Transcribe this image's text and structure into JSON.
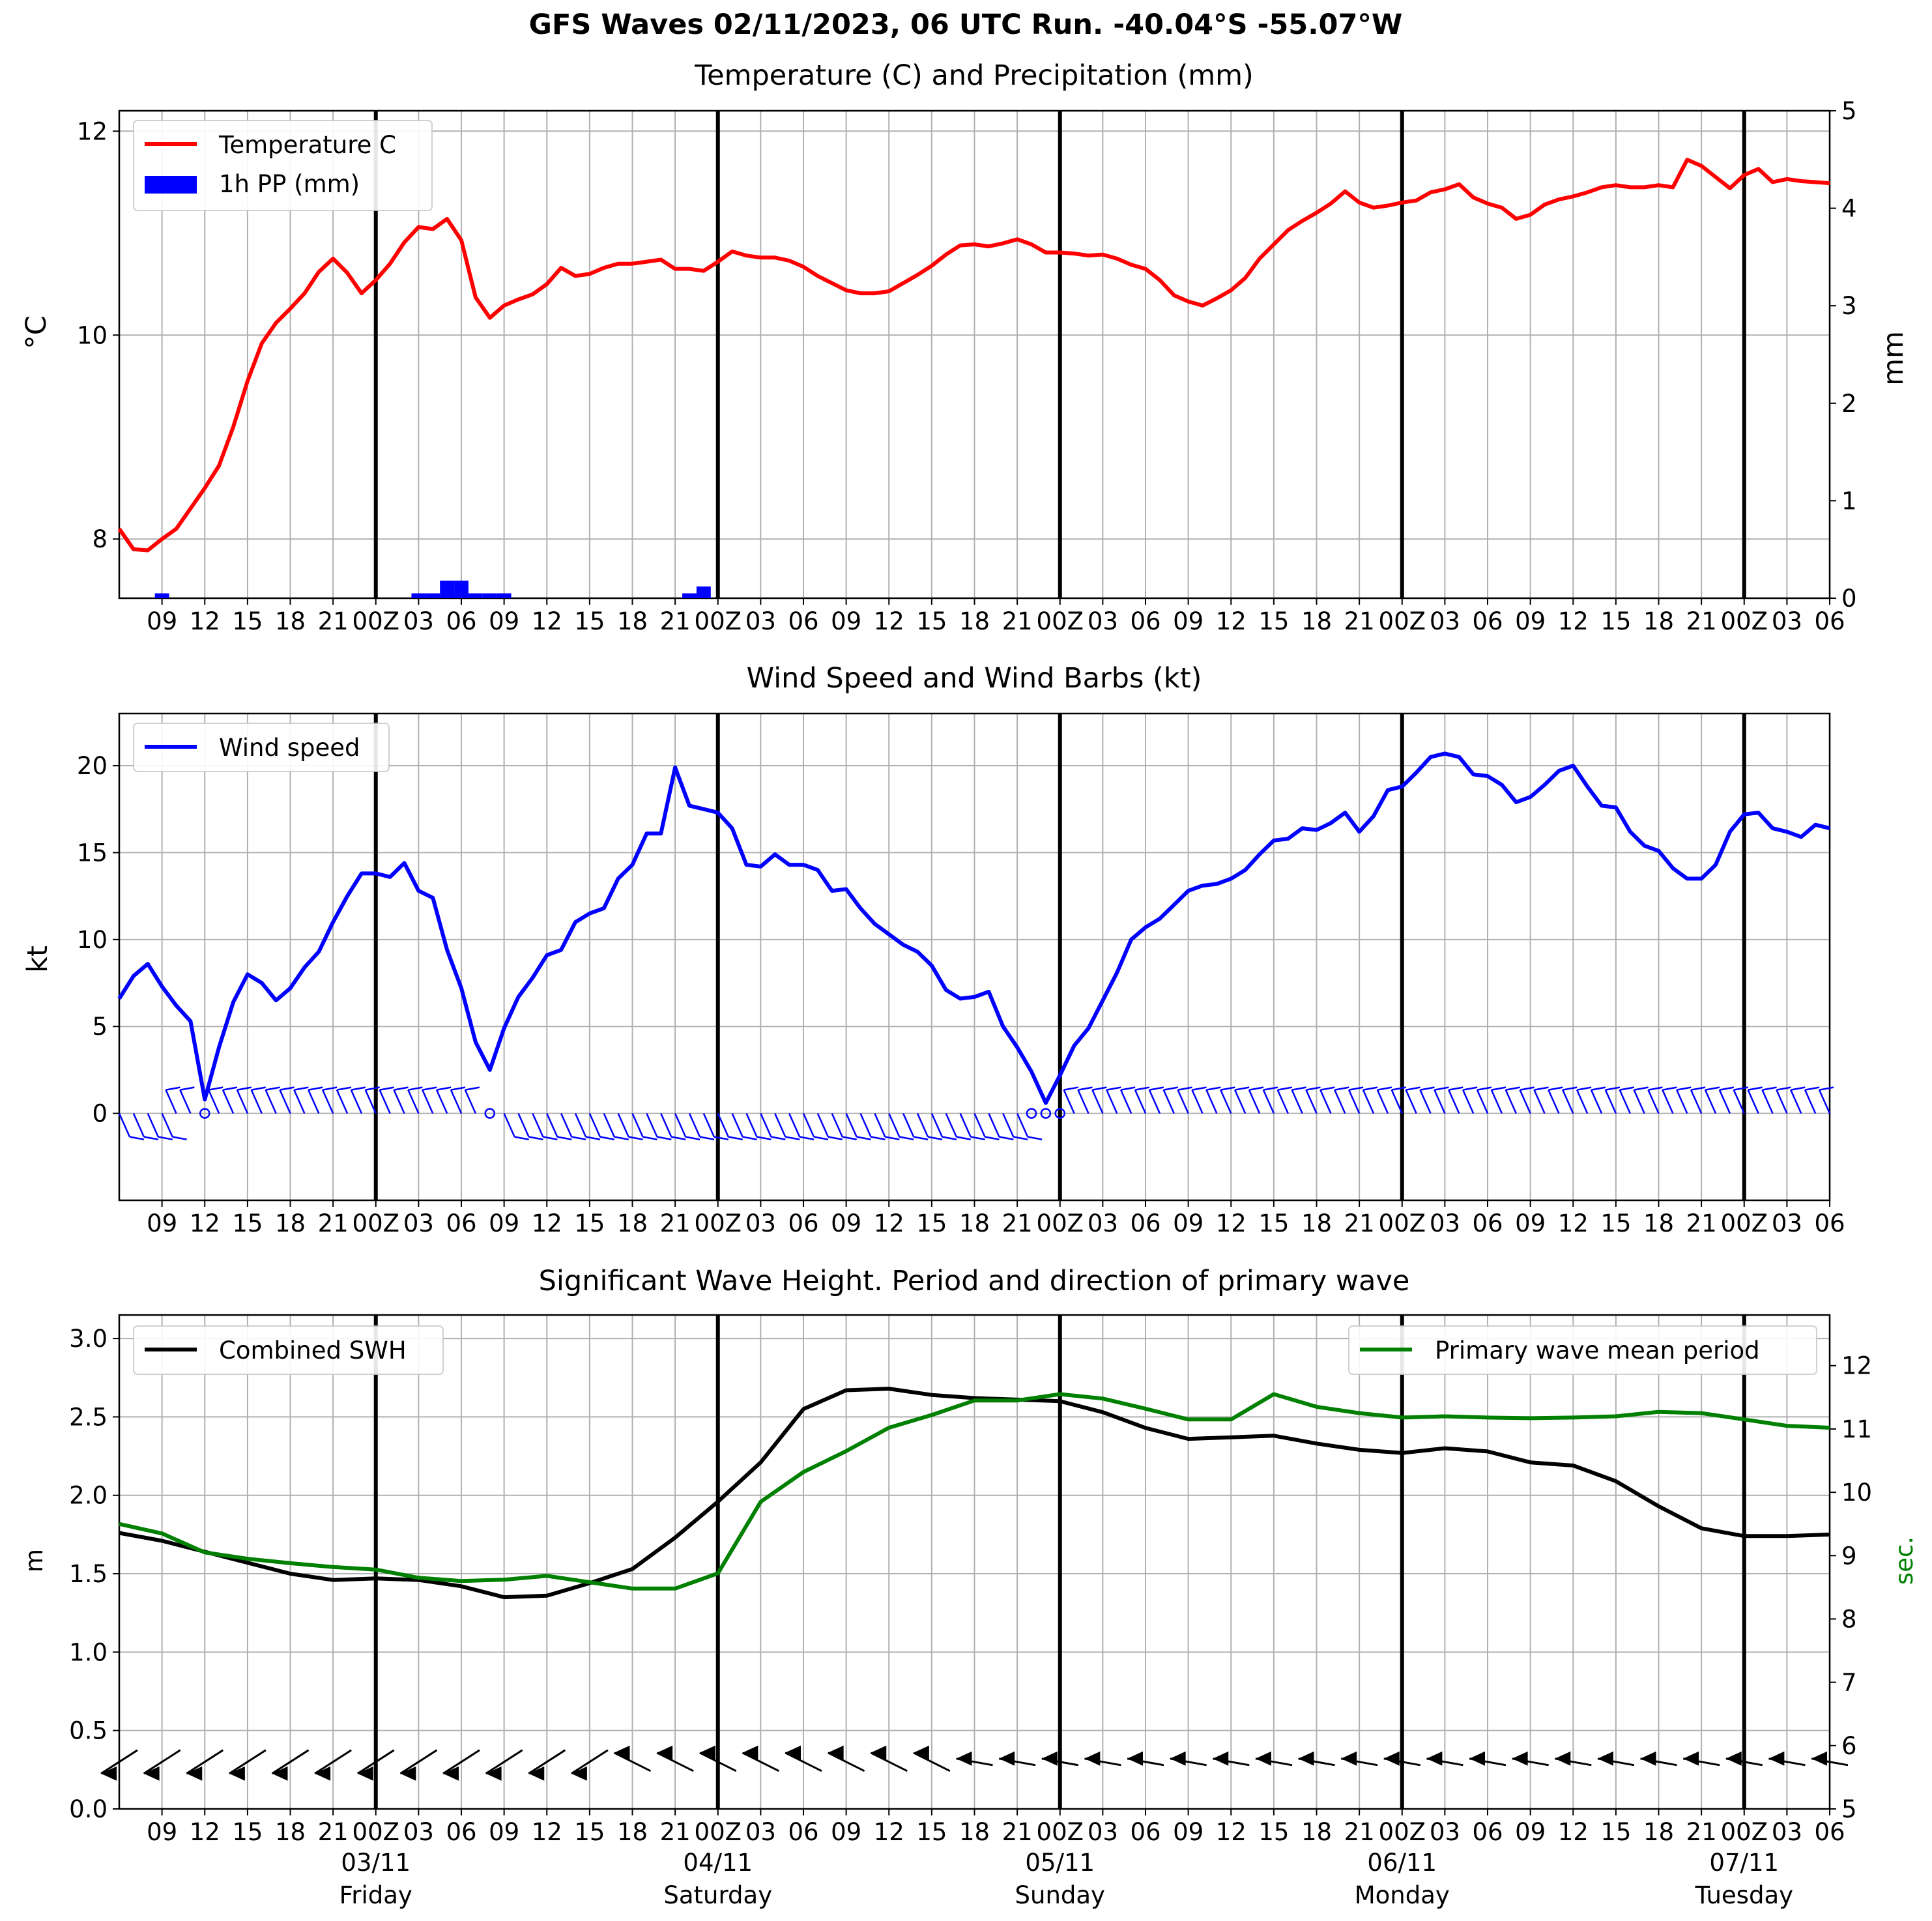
{
  "suptitle": "GFS Waves 02/11/2023, 06 UTC Run. -40.04°S -55.07°W",
  "colors": {
    "temperature": "#ff0000",
    "precipitation": "#0000ff",
    "wind": "#0000ff",
    "swh": "#000000",
    "period": "#008000",
    "grid": "#b0b0b0",
    "day_line": "#000000"
  },
  "x_axis": {
    "tick_labels": [
      "09",
      "12",
      "15",
      "18",
      "21",
      "00Z",
      "03",
      "06",
      "09",
      "12",
      "15",
      "18",
      "21",
      "00Z",
      "03",
      "06",
      "09",
      "12",
      "15",
      "18",
      "21",
      "00Z",
      "03",
      "06",
      "09",
      "12",
      "15",
      "18",
      "21",
      "00Z",
      "03",
      "06",
      "09",
      "12",
      "15",
      "18",
      "21",
      "00Z",
      "03",
      "06"
    ],
    "day_labels": [
      {
        "date": "03/11",
        "weekday": "Friday"
      },
      {
        "date": "04/11",
        "weekday": "Saturday"
      },
      {
        "date": "05/11",
        "weekday": "Sunday"
      },
      {
        "date": "06/11",
        "weekday": "Monday"
      },
      {
        "date": "07/11",
        "weekday": "Tuesday"
      }
    ]
  },
  "chart_data": [
    {
      "type": "line",
      "title": "Temperature (C) and Precipitation (mm)",
      "x_units": "hours from 02/11/2023 06 UTC",
      "xlim": [
        0,
        120
      ],
      "ylabel": "°C",
      "ylim": [
        7.42,
        12.2
      ],
      "yticks": [
        8,
        10,
        12
      ],
      "ylabel_right": "mm",
      "ylim_right": [
        0,
        5
      ],
      "yticks_right": [
        0,
        1,
        2,
        3,
        4,
        5
      ],
      "legend": "top-left",
      "grid": true,
      "series": [
        {
          "name": "Temperature C",
          "x": [
            0,
            1,
            2,
            3,
            4,
            5,
            6,
            7,
            8,
            9,
            10,
            11,
            12,
            13,
            14,
            15,
            16,
            17,
            18,
            19,
            20,
            21,
            22,
            23,
            24,
            25,
            26,
            27,
            28,
            29,
            30,
            31,
            32,
            33,
            34,
            35,
            36,
            37,
            38,
            39,
            40,
            41,
            42,
            43,
            44,
            45,
            46,
            47,
            48,
            49,
            50,
            51,
            52,
            53,
            54,
            55,
            56,
            57,
            58,
            59,
            60,
            61,
            62,
            63,
            64,
            65,
            66,
            67,
            68,
            69,
            70,
            71,
            72,
            73,
            74,
            75,
            76,
            77,
            78,
            79,
            80,
            81,
            82,
            83,
            84,
            85,
            86,
            87,
            88,
            89,
            90,
            91,
            92,
            93,
            94,
            95,
            96,
            97,
            98,
            99,
            100,
            101,
            102,
            103,
            104,
            105,
            106,
            107,
            108,
            109,
            110,
            111,
            112,
            113,
            114,
            115,
            116,
            117,
            118,
            119,
            120
          ],
          "values": [
            8.1,
            7.9,
            7.89,
            8.0,
            8.1,
            8.3,
            8.5,
            8.72,
            9.1,
            9.55,
            9.92,
            10.12,
            10.26,
            10.41,
            10.62,
            10.75,
            10.61,
            10.41,
            10.54,
            10.7,
            10.91,
            11.06,
            11.04,
            11.14,
            10.93,
            10.37,
            10.17,
            10.29,
            10.35,
            10.4,
            10.5,
            10.66,
            10.58,
            10.6,
            10.66,
            10.7,
            10.7,
            10.72,
            10.74,
            10.65,
            10.65,
            10.63,
            10.72,
            10.82,
            10.78,
            10.76,
            10.76,
            10.73,
            10.67,
            10.58,
            10.51,
            10.44,
            10.41,
            10.41,
            10.43,
            10.51,
            10.59,
            10.68,
            10.79,
            10.88,
            10.89,
            10.87,
            10.9,
            10.94,
            10.89,
            10.81,
            10.81,
            10.8,
            10.78,
            10.79,
            10.75,
            10.69,
            10.65,
            10.54,
            10.39,
            10.33,
            10.29,
            10.36,
            10.44,
            10.56,
            10.75,
            10.89,
            11.03,
            11.12,
            11.2,
            11.29,
            11.41,
            11.3,
            11.25,
            11.27,
            11.3,
            11.32,
            11.4,
            11.43,
            11.48,
            11.35,
            11.29,
            11.25,
            11.14,
            11.18,
            11.28,
            11.33,
            11.36,
            11.4,
            11.45,
            11.47,
            11.45,
            11.45,
            11.47,
            11.45,
            11.72,
            11.66,
            11.55,
            11.44,
            11.57,
            11.63,
            11.5,
            11.53,
            11.51,
            11.5,
            11.49
          ]
        },
        {
          "name": "1h PP (mm)",
          "type": "bar",
          "axis": "right",
          "x": [
            3,
            21,
            22,
            23,
            24,
            25,
            26,
            27,
            40,
            41
          ],
          "values": [
            0.05,
            0.05,
            0.05,
            0.18,
            0.18,
            0.05,
            0.05,
            0.05,
            0.05,
            0.12
          ]
        }
      ]
    },
    {
      "type": "line",
      "title": "Wind Speed and Wind Barbs (kt)",
      "x_units": "hours from 02/11/2023 06 UTC",
      "xlim": [
        0,
        120
      ],
      "ylabel": "kt",
      "ylim": [
        -5,
        23
      ],
      "yticks": [
        0,
        5,
        10,
        15,
        20
      ],
      "legend": "top-left",
      "grid": true,
      "series": [
        {
          "name": "Wind speed",
          "x": [
            0,
            1,
            2,
            3,
            4,
            5,
            6,
            7,
            8,
            9,
            10,
            11,
            12,
            13,
            14,
            15,
            16,
            17,
            18,
            19,
            20,
            21,
            22,
            23,
            24,
            25,
            26,
            27,
            28,
            29,
            30,
            31,
            32,
            33,
            34,
            35,
            36,
            37,
            38,
            39,
            40,
            41,
            42,
            43,
            44,
            45,
            46,
            47,
            48,
            49,
            50,
            51,
            52,
            53,
            54,
            55,
            56,
            57,
            58,
            59,
            60,
            61,
            62,
            63,
            64,
            65,
            66,
            67,
            68,
            69,
            70,
            71,
            72,
            73,
            74,
            75,
            76,
            77,
            78,
            79,
            80,
            81,
            82,
            83,
            84,
            85,
            86,
            87,
            88,
            89,
            90,
            91,
            92,
            93,
            94,
            95,
            96,
            97,
            98,
            99,
            100,
            101,
            102,
            103,
            104,
            105,
            106,
            107,
            108,
            109,
            110,
            111,
            112,
            113,
            114,
            115,
            116,
            117,
            118,
            119,
            120
          ],
          "values": [
            6.6,
            7.9,
            8.6,
            7.3,
            6.2,
            5.3,
            0.8,
            3.8,
            6.4,
            8.0,
            7.5,
            6.5,
            7.2,
            8.4,
            9.3,
            11.0,
            12.5,
            13.8,
            13.8,
            13.6,
            14.4,
            12.8,
            12.4,
            9.4,
            7.2,
            4.1,
            2.5,
            4.9,
            6.7,
            7.8,
            9.1,
            9.4,
            11.0,
            11.5,
            11.8,
            13.5,
            14.3,
            16.1,
            16.1,
            19.9,
            17.7,
            17.5,
            17.3,
            16.4,
            14.3,
            14.2,
            14.9,
            14.3,
            14.3,
            14.0,
            12.8,
            12.9,
            11.8,
            10.9,
            10.3,
            9.7,
            9.3,
            8.5,
            7.1,
            6.6,
            6.7,
            7.0,
            5.0,
            3.8,
            2.4,
            0.6,
            2.2,
            3.9,
            4.9,
            6.5,
            8.1,
            10.0,
            10.7,
            11.2,
            12.0,
            12.8,
            13.1,
            13.2,
            13.5,
            14.0,
            14.9,
            15.7,
            15.8,
            16.4,
            16.3,
            16.7,
            17.3,
            16.2,
            17.1,
            18.6,
            18.8,
            19.6,
            20.5,
            20.7,
            20.5,
            19.5,
            19.4,
            18.9,
            17.9,
            18.2,
            18.9,
            19.7,
            20.0,
            18.8,
            17.7,
            17.6,
            16.2,
            15.4,
            15.1,
            14.1,
            13.5,
            13.5,
            14.3,
            16.2,
            17.2,
            17.3,
            16.4,
            16.2,
            15.9,
            16.6,
            16.4
          ]
        }
      ]
    },
    {
      "type": "line",
      "title": "Significant Wave Height. Period and direction of primary wave",
      "x_units": "hours from 02/11/2023 06 UTC",
      "xlim": [
        0,
        120
      ],
      "ylabel": "m",
      "ylim": [
        0.0,
        3.15
      ],
      "yticks": [
        0.0,
        0.5,
        1.0,
        1.5,
        2.0,
        2.5,
        3.0
      ],
      "ylabel_right": "sec.",
      "ylim_right": [
        5,
        12.8
      ],
      "yticks_right": [
        5,
        6,
        7,
        8,
        9,
        10,
        11,
        12
      ],
      "legend": [
        "top-left",
        "top-right"
      ],
      "grid": true,
      "series": [
        {
          "name": "Combined SWH",
          "x": [
            0,
            3,
            6,
            9,
            12,
            15,
            18,
            21,
            24,
            27,
            30,
            33,
            36,
            39,
            42,
            45,
            48,
            51,
            54,
            57,
            60,
            63,
            66,
            69,
            72,
            75,
            78,
            81,
            84,
            87,
            90,
            93,
            96,
            99,
            102,
            105,
            108,
            111,
            114,
            117,
            120
          ],
          "values": [
            1.76,
            1.71,
            1.64,
            1.57,
            1.5,
            1.46,
            1.47,
            1.46,
            1.42,
            1.35,
            1.36,
            1.44,
            1.53,
            1.73,
            1.96,
            2.21,
            2.55,
            2.67,
            2.68,
            2.64,
            2.62,
            2.61,
            2.6,
            2.53,
            2.43,
            2.36,
            2.37,
            2.38,
            2.33,
            2.29,
            2.27,
            2.3,
            2.28,
            2.21,
            2.19,
            2.09,
            1.93,
            1.79,
            1.74,
            1.74,
            1.75
          ]
        },
        {
          "name": "Primary wave mean period",
          "axis": "right",
          "x": [
            0,
            3,
            6,
            9,
            12,
            15,
            18,
            21,
            24,
            27,
            30,
            33,
            36,
            39,
            42,
            45,
            48,
            51,
            54,
            57,
            60,
            63,
            66,
            69,
            72,
            75,
            78,
            81,
            84,
            87,
            90,
            93,
            96,
            99,
            102,
            105,
            108,
            111,
            114,
            117,
            120
          ],
          "values": [
            9.5,
            9.35,
            9.05,
            8.95,
            8.88,
            8.82,
            8.78,
            8.65,
            8.6,
            8.62,
            8.68,
            8.58,
            8.48,
            8.48,
            8.72,
            9.85,
            10.32,
            10.65,
            11.02,
            11.22,
            11.45,
            11.45,
            11.55,
            11.48,
            11.32,
            11.15,
            11.15,
            11.55,
            11.35,
            11.25,
            11.18,
            11.2,
            11.18,
            11.17,
            11.18,
            11.2,
            11.27,
            11.25,
            11.15,
            11.05,
            11.02
          ]
        }
      ]
    }
  ]
}
